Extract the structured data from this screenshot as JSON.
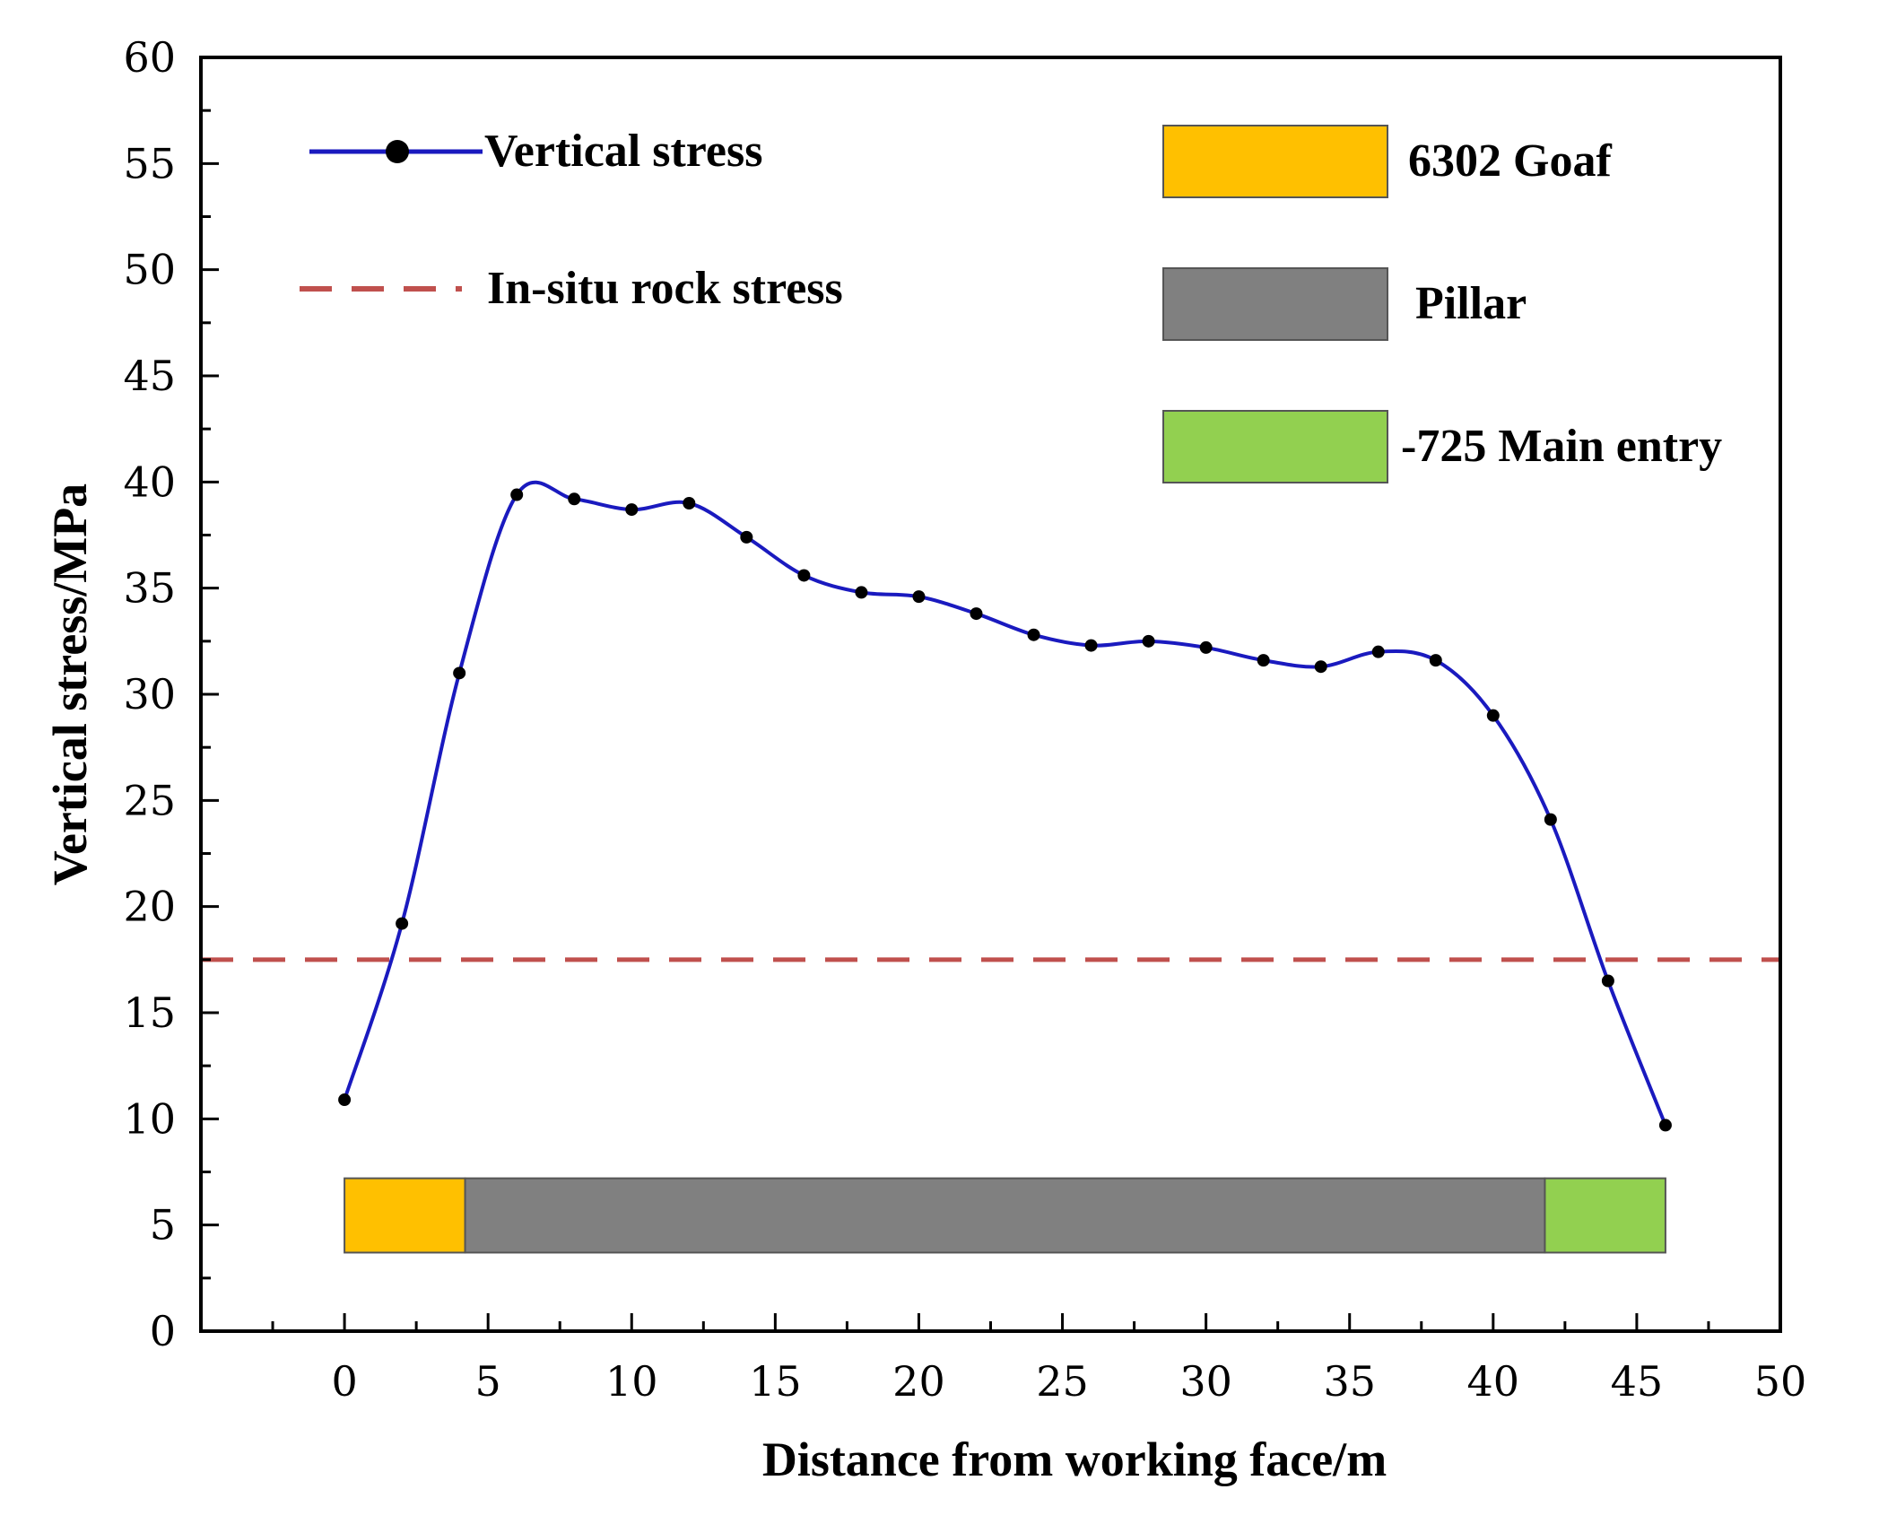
{
  "chart_data": {
    "type": "line",
    "xlabel": "Distance from working face/m",
    "ylabel": "Vertical stress/MPa",
    "xlim": [
      -5,
      50
    ],
    "ylim": [
      0,
      60
    ],
    "xticks": [
      0,
      5,
      10,
      15,
      20,
      25,
      30,
      35,
      40,
      45,
      50
    ],
    "yticks": [
      0,
      5,
      10,
      15,
      20,
      25,
      30,
      35,
      40,
      45,
      50,
      55,
      60
    ],
    "grid": false,
    "series": [
      {
        "name": "Vertical stress",
        "color": "#1a1abf",
        "marker": "circle",
        "x": [
          0,
          2,
          4,
          6,
          8,
          10,
          12,
          14,
          16,
          18,
          20,
          22,
          24,
          26,
          28,
          30,
          32,
          34,
          36,
          38,
          40,
          42,
          44,
          46
        ],
        "y": [
          10.9,
          19.2,
          31.0,
          39.4,
          39.2,
          38.7,
          39.0,
          37.4,
          35.6,
          34.8,
          34.6,
          33.8,
          32.8,
          32.3,
          32.5,
          32.2,
          31.6,
          31.3,
          32.0,
          31.6,
          29.0,
          24.1,
          16.5,
          9.7
        ]
      }
    ],
    "reference_line": {
      "name": "In-situ rock stress",
      "y": 17.5,
      "color": "#c0504d",
      "style": "dashed"
    },
    "zones": [
      {
        "name": "6302 Goaf",
        "x_start": 0,
        "x_end": 4.2,
        "color": "#ffc000"
      },
      {
        "name": "Pillar",
        "x_start": 4.2,
        "x_end": 41.8,
        "color": "#808080"
      },
      {
        "name": "-725 Main entry",
        "x_start": 41.8,
        "x_end": 46,
        "color": "#92d050"
      }
    ],
    "zone_band_y": [
      3.7,
      7.2
    ],
    "legend": {
      "series_label": "Vertical stress",
      "reference_label": "In-situ rock stress",
      "zone_labels": [
        "6302 Goaf",
        "Pillar",
        "-725 Main entry"
      ]
    }
  }
}
